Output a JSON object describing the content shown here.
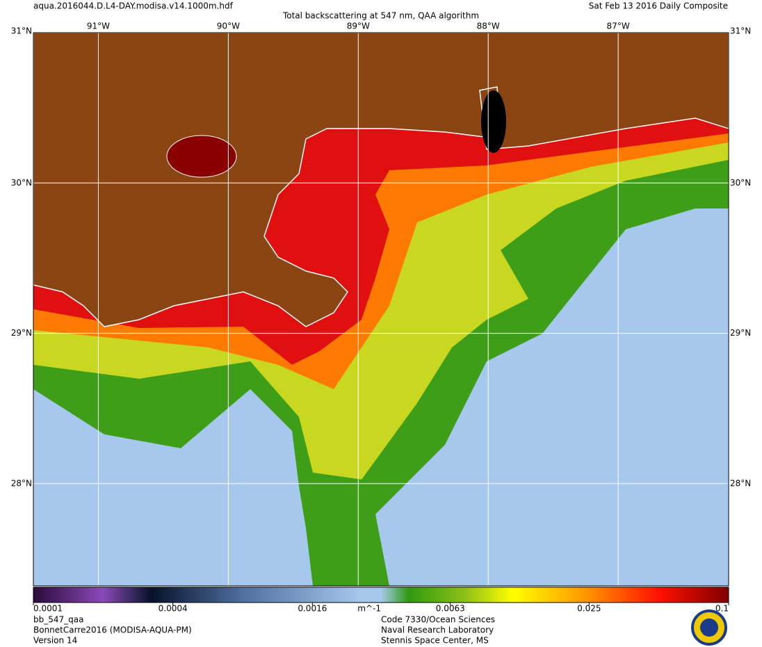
{
  "header": {
    "file": "aqua.2016044.D.L4-DAY.modisa.v14.1000m.hdf",
    "title": "Total backscattering at 547 nm, QAA algorithm",
    "date": "Sat Feb 13 2016 Daily Composite"
  },
  "map": {
    "lonlim": [
      -91.5,
      -86.15
    ],
    "latlim": [
      27.32,
      31
    ],
    "lon_ticks": [
      {
        "value": -91,
        "label": "91°W"
      },
      {
        "value": -90,
        "label": "90°W"
      },
      {
        "value": -89,
        "label": "89°W"
      },
      {
        "value": -88,
        "label": "88°W"
      },
      {
        "value": -87,
        "label": "87°W"
      }
    ],
    "lat_ticks": [
      {
        "value": 28,
        "label": "28°N"
      },
      {
        "value": 29,
        "label": "29°N"
      },
      {
        "value": 30,
        "label": "30°N"
      },
      {
        "value": 31,
        "label": "31°N"
      }
    ]
  },
  "colorbar": {
    "lim": [
      0.0001,
      0.1
    ],
    "scale": "log",
    "ticks": [
      0.0001,
      0.0004,
      0.0016,
      0.0063,
      0.025,
      0.1
    ],
    "unit": "m^-1"
  },
  "footer": {
    "left": [
      "bb_547_qaa",
      "BonnetCarre2016 (MODISA-AQUA-PM)",
      "Version 14"
    ],
    "center": [
      "Code 7330/Ocean Sciences",
      "Naval Research Laboratory",
      "Stennis Space Center, MS"
    ]
  }
}
